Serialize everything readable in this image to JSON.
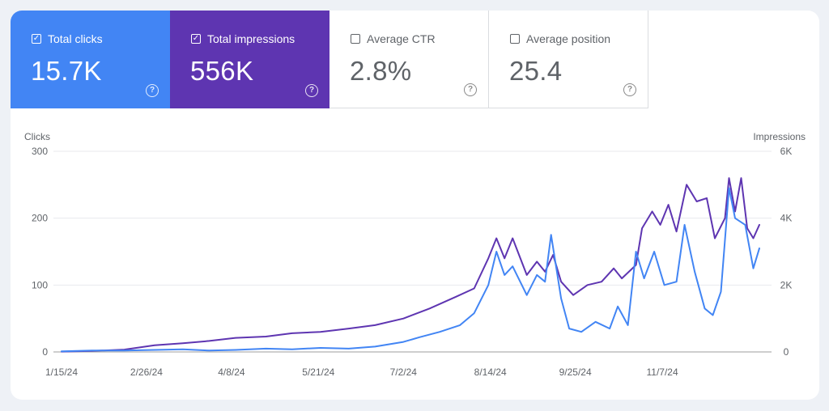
{
  "metrics": [
    {
      "label": "Total clicks",
      "value": "15.7K",
      "checked": true
    },
    {
      "label": "Total impressions",
      "value": "556K",
      "checked": true
    },
    {
      "label": "Average CTR",
      "value": "2.8%",
      "checked": false
    },
    {
      "label": "Average position",
      "value": "25.4",
      "checked": false
    }
  ],
  "colors": {
    "clicks": "#4285f4",
    "impressions": "#5e35b1",
    "background": "#eef1f6"
  },
  "icons": {
    "help": "help-circle-icon",
    "checkbox": "checkbox-icon"
  },
  "chart_data": {
    "type": "line",
    "ylabel_left": "Clicks",
    "ylabel_right": "Impressions",
    "yticks_left": [
      "0",
      "100",
      "200",
      "300"
    ],
    "yticks_right": [
      "0",
      "2K",
      "4K",
      "6K"
    ],
    "ylim_left": [
      0,
      300
    ],
    "ylim_right": [
      0,
      6000
    ],
    "xlim": [
      "1/11/24",
      "12/31/24"
    ],
    "xticks": [
      "1/15/24",
      "2/26/24",
      "4/8/24",
      "5/21/24",
      "7/2/24",
      "8/14/24",
      "9/25/24",
      "11/7/24"
    ],
    "grid": true,
    "series": [
      {
        "name": "Clicks",
        "axis": "left",
        "color": "#4285f4",
        "points": [
          [
            "1/15/24",
            1
          ],
          [
            "1/30/24",
            2
          ],
          [
            "2/15/24",
            2
          ],
          [
            "3/1/24",
            3
          ],
          [
            "3/15/24",
            4
          ],
          [
            "3/28/24",
            2
          ],
          [
            "4/10/24",
            3
          ],
          [
            "4/25/24",
            5
          ],
          [
            "5/8/24",
            4
          ],
          [
            "5/22/24",
            6
          ],
          [
            "6/5/24",
            5
          ],
          [
            "6/18/24",
            8
          ],
          [
            "7/2/24",
            15
          ],
          [
            "7/10/24",
            22
          ],
          [
            "7/20/24",
            30
          ],
          [
            "7/30/24",
            40
          ],
          [
            "8/6/24",
            58
          ],
          [
            "8/13/24",
            100
          ],
          [
            "8/17/24",
            150
          ],
          [
            "8/21/24",
            115
          ],
          [
            "8/25/24",
            128
          ],
          [
            "9/1/24",
            85
          ],
          [
            "9/6/24",
            115
          ],
          [
            "9/10/24",
            105
          ],
          [
            "9/13/24",
            175
          ],
          [
            "9/18/24",
            80
          ],
          [
            "9/22/24",
            35
          ],
          [
            "9/28/24",
            30
          ],
          [
            "10/5/24",
            45
          ],
          [
            "10/12/24",
            35
          ],
          [
            "10/16/24",
            68
          ],
          [
            "10/21/24",
            40
          ],
          [
            "10/25/24",
            150
          ],
          [
            "10/29/24",
            110
          ],
          [
            "11/3/24",
            150
          ],
          [
            "11/8/24",
            100
          ],
          [
            "11/14/24",
            105
          ],
          [
            "11/18/24",
            190
          ],
          [
            "11/23/24",
            120
          ],
          [
            "11/28/24",
            65
          ],
          [
            "12/2/24",
            55
          ],
          [
            "12/6/24",
            90
          ],
          [
            "12/10/24",
            245
          ],
          [
            "12/13/24",
            200
          ],
          [
            "12/18/24",
            190
          ],
          [
            "12/22/24",
            125
          ],
          [
            "12/25/24",
            155
          ]
        ]
      },
      {
        "name": "Impressions",
        "axis": "right",
        "color": "#5e35b1",
        "points": [
          [
            "1/15/24",
            10
          ],
          [
            "1/30/24",
            30
          ],
          [
            "2/15/24",
            70
          ],
          [
            "3/1/24",
            200
          ],
          [
            "3/15/24",
            260
          ],
          [
            "3/28/24",
            330
          ],
          [
            "4/10/24",
            420
          ],
          [
            "4/25/24",
            460
          ],
          [
            "5/8/24",
            560
          ],
          [
            "5/22/24",
            600
          ],
          [
            "6/5/24",
            700
          ],
          [
            "6/18/24",
            800
          ],
          [
            "7/2/24",
            1000
          ],
          [
            "7/15/24",
            1300
          ],
          [
            "7/28/24",
            1650
          ],
          [
            "8/6/24",
            1900
          ],
          [
            "8/13/24",
            2800
          ],
          [
            "8/17/24",
            3400
          ],
          [
            "8/21/24",
            2800
          ],
          [
            "8/25/24",
            3400
          ],
          [
            "9/1/24",
            2300
          ],
          [
            "9/6/24",
            2700
          ],
          [
            "9/10/24",
            2400
          ],
          [
            "9/14/24",
            2900
          ],
          [
            "9/18/24",
            2100
          ],
          [
            "9/24/24",
            1700
          ],
          [
            "10/1/24",
            2000
          ],
          [
            "10/8/24",
            2100
          ],
          [
            "10/14/24",
            2500
          ],
          [
            "10/18/24",
            2200
          ],
          [
            "10/25/24",
            2600
          ],
          [
            "10/28/24",
            3700
          ],
          [
            "11/2/24",
            4200
          ],
          [
            "11/6/24",
            3800
          ],
          [
            "11/10/24",
            4400
          ],
          [
            "11/14/24",
            3600
          ],
          [
            "11/19/24",
            5000
          ],
          [
            "11/24/24",
            4500
          ],
          [
            "11/29/24",
            4600
          ],
          [
            "12/3/24",
            3400
          ],
          [
            "12/8/24",
            4000
          ],
          [
            "12/10/24",
            5200
          ],
          [
            "12/13/24",
            4200
          ],
          [
            "12/16/24",
            5200
          ],
          [
            "12/19/24",
            3700
          ],
          [
            "12/22/24",
            3400
          ],
          [
            "12/25/24",
            3800
          ]
        ]
      }
    ]
  }
}
